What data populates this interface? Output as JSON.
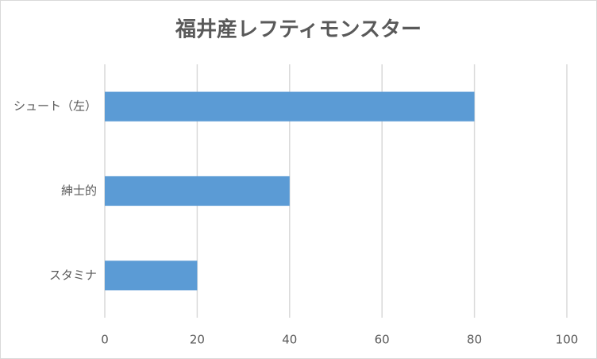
{
  "chart_data": {
    "type": "bar",
    "orientation": "horizontal",
    "title": "福井産レフティモンスター",
    "categories": [
      "シュート（左）",
      "紳士的",
      "スタミナ"
    ],
    "values": [
      80,
      40,
      20
    ],
    "color": "#5b9bd5",
    "xlim": [
      0,
      100
    ],
    "xticks": [
      0,
      20,
      40,
      60,
      80,
      100
    ],
    "grid": true
  }
}
